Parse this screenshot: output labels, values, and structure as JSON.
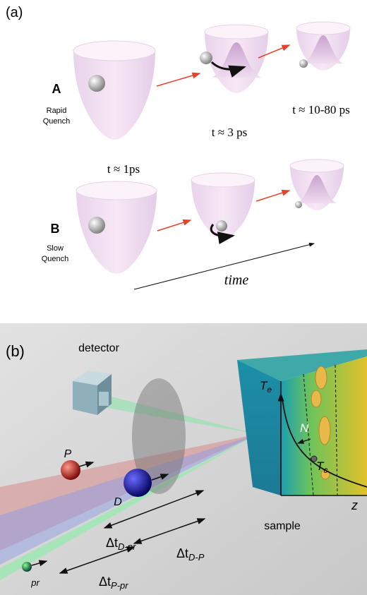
{
  "panel_a": {
    "label": "(a)",
    "row_a": {
      "letter": "A",
      "line1": "Rapid",
      "line2": "Quench"
    },
    "row_b": {
      "letter": "B",
      "line1": "Slow",
      "line2": "Quench"
    },
    "times": [
      "t ≈ 1ps",
      "t ≈ 3 ps",
      "t ≈ 10-80 ps"
    ],
    "axis": "time"
  },
  "panel_b": {
    "label": "(b)",
    "detector": "detector",
    "sample": "sample",
    "pulses": [
      "P",
      "D",
      "pr"
    ],
    "delays": [
      {
        "symbol": "Δt",
        "subscript": "D-pr"
      },
      {
        "symbol": "Δt",
        "subscript": "D-P"
      },
      {
        "symbol": "Δt",
        "subscript": "P-pr"
      }
    ],
    "sample_labels": {
      "te": {
        "symbol": "T",
        "subscript": "e"
      },
      "n": "N",
      "tc": {
        "symbol": "T",
        "subscript": "c"
      },
      "z": "z"
    }
  }
}
